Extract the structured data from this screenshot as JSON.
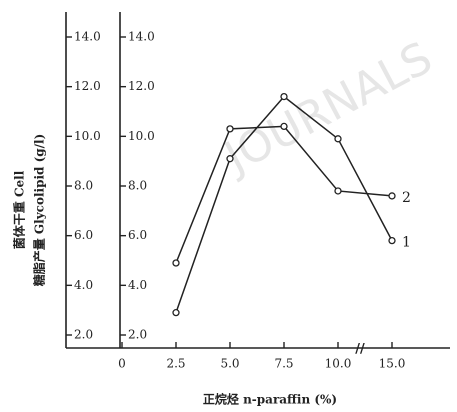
{
  "chart_data": {
    "type": "line",
    "ylabel": "菌体干重 Cell",
    "y2label": "糖脂产量 Glycolipid (g/l)",
    "xlabel": "正烷烃 n-paraffin (%)",
    "watermark": "JOURNALS",
    "categories": [
      "0",
      "2.5",
      "5.0",
      "7.5",
      "10.0",
      "15.0"
    ],
    "ylim": [
      2.0,
      14.0
    ],
    "yticks": [
      {
        "value": 2,
        "label": "2.0"
      },
      {
        "value": 4,
        "label": "4.0"
      },
      {
        "value": 6,
        "label": "6.0"
      },
      {
        "value": 8,
        "label": "8.0"
      },
      {
        "value": 10,
        "label": "10.0"
      },
      {
        "value": 12,
        "label": "12.0"
      },
      {
        "value": 14,
        "label": "14.0"
      }
    ],
    "y2lim": [
      2.0,
      14.0
    ],
    "y2ticks": [
      {
        "value": 2,
        "label": "2.0"
      },
      {
        "value": 4,
        "label": "4.0"
      },
      {
        "value": 6,
        "label": "6.0"
      },
      {
        "value": 8,
        "label": "8.0"
      },
      {
        "value": 10,
        "label": "10.0"
      },
      {
        "value": 12,
        "label": "12.0"
      },
      {
        "value": 14,
        "label": "14.0"
      }
    ],
    "series": [
      {
        "name": "1",
        "color": "#222222",
        "values": [
          null,
          2.9,
          9.1,
          11.6,
          9.9,
          5.8
        ]
      },
      {
        "name": "2",
        "color": "#222222",
        "values": [
          null,
          4.9,
          10.3,
          10.4,
          7.8,
          7.6
        ]
      }
    ]
  }
}
